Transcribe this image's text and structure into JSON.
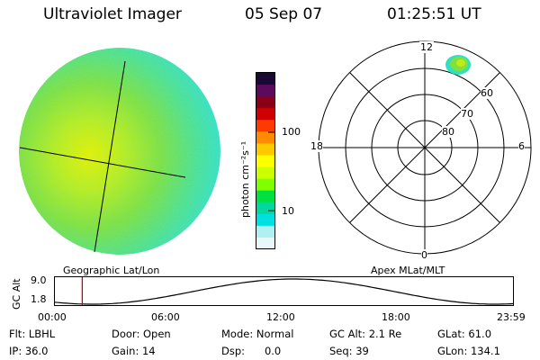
{
  "header": {
    "instrument": "Ultraviolet Imager",
    "date": "05 Sep 07",
    "time": "01:25:51 UT"
  },
  "left_panel": {
    "label": "Geographic Lat/Lon"
  },
  "colorbar": {
    "unit_label": "photon cm⁻²s⁻¹",
    "ticks": [
      "100",
      "10"
    ],
    "colors": [
      "#1a0a33",
      "#5b0a5e",
      "#8a0018",
      "#d10000",
      "#ff3a00",
      "#ff8c00",
      "#ffc800",
      "#ffff00",
      "#ccff00",
      "#80ff00",
      "#00e040",
      "#00d8a0",
      "#00e0e0",
      "#b0f0f0",
      "#e8f8f8"
    ]
  },
  "polar_plot": {
    "label": "Apex MLat/MLT",
    "mlt_labels": {
      "top": "12",
      "bottom": "0",
      "left": "18",
      "right": "6"
    },
    "lat_labels": [
      "60",
      "70",
      "80"
    ]
  },
  "altitude_plot": {
    "ylabel": "GC Alt",
    "yticks": [
      "9.0",
      "1.8"
    ],
    "xticks": [
      "00:00",
      "06:00",
      "12:00",
      "18:00",
      "23:59"
    ],
    "marker_time_hours": 1.43,
    "marker_color": "#cc0000"
  },
  "info": {
    "filter": "Flt: LBHL",
    "ip": "IP: 36.0",
    "door": "Door: Open",
    "gain": "Gain: 14",
    "mode": "Mode: Normal",
    "dsp": "Dsp:      0.0",
    "gc_alt": "GC Alt: 2.1 Re",
    "seq": "Seq: 39",
    "glat": "GLat: 61.0",
    "glon": "GLon: 134.1"
  }
}
